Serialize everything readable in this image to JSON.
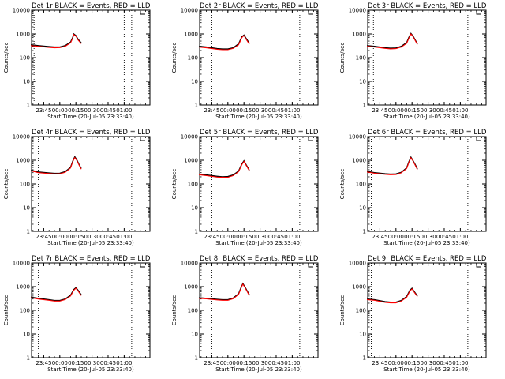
{
  "chart_data": [
    {
      "type": "line",
      "title": "Det 1r BLACK = Events, RED = LLD",
      "xlabel": "Start Time (20-Jul-05 23:33:40)",
      "ylabel": "Counts/sec",
      "yscale": "log",
      "ylim": [
        1,
        10000
      ],
      "y_ticks": [
        "1",
        "10",
        "100",
        "1000",
        "10000"
      ],
      "x_ticks": [
        "23:45",
        "00:00",
        "00:15",
        "00:30",
        "00:45",
        "01:00"
      ],
      "xlim": [
        "23:33:40",
        "01:24:00"
      ],
      "vlines": [
        "23:36",
        "01:00",
        "01:07"
      ],
      "legend": "top-right",
      "series": [
        {
          "color": "#000000",
          "x": [
            "23:33",
            "23:40",
            "23:50",
            "23:55",
            "00:00",
            "00:05",
            "00:10",
            "00:12",
            "00:13",
            "00:15",
            "00:17",
            "00:20"
          ],
          "values": [
            350,
            320,
            290,
            280,
            280,
            320,
            450,
            700,
            1000,
            850,
            600,
            420
          ]
        },
        {
          "color": "#ff0000",
          "x": [
            "23:33",
            "23:40",
            "23:50",
            "23:55",
            "00:00",
            "00:05",
            "00:10",
            "00:12",
            "00:13",
            "00:15",
            "00:17",
            "00:20"
          ],
          "values": [
            320,
            300,
            270,
            260,
            265,
            300,
            420,
            650,
            950,
            800,
            560,
            390
          ]
        }
      ]
    },
    {
      "type": "line",
      "title": "Det 2r BLACK = Events, RED = LLD",
      "xlabel": "Start Time (20-Jul-05 23:33:40)",
      "ylabel": "Counts/sec",
      "yscale": "log",
      "ylim": [
        1,
        10000
      ],
      "y_ticks": [
        "1",
        "10",
        "100",
        "1000",
        "10000"
      ],
      "x_ticks": [
        "23:45",
        "00:00",
        "00:15",
        "00:30",
        "00:45",
        "01:00"
      ],
      "xlim": [
        "23:33:40",
        "01:24:00"
      ],
      "vlines": [
        "23:45",
        "01:07"
      ],
      "legend": "top-right",
      "series": [
        {
          "color": "#000000",
          "x": [
            "23:33",
            "23:40",
            "23:50",
            "23:55",
            "00:00",
            "00:05",
            "00:10",
            "00:13",
            "00:15",
            "00:17",
            "00:20"
          ],
          "values": [
            300,
            280,
            240,
            230,
            230,
            260,
            380,
            750,
            900,
            650,
            400
          ]
        },
        {
          "color": "#ff0000",
          "x": [
            "23:33",
            "23:40",
            "23:50",
            "23:55",
            "00:00",
            "00:05",
            "00:10",
            "00:13",
            "00:15",
            "00:17",
            "00:20"
          ],
          "values": [
            280,
            260,
            225,
            215,
            215,
            245,
            350,
            700,
            850,
            600,
            370
          ]
        }
      ]
    },
    {
      "type": "line",
      "title": "Det 3r BLACK = Events, RED = LLD",
      "xlabel": "Start Time (20-Jul-05 23:33:40)",
      "ylabel": "Counts/sec",
      "yscale": "log",
      "ylim": [
        1,
        10000
      ],
      "y_ticks": [
        "1",
        "10",
        "100",
        "1000",
        "10000"
      ],
      "x_ticks": [
        "23:45",
        "00:00",
        "00:15",
        "00:30",
        "00:45",
        "01:00"
      ],
      "xlim": [
        "23:33:40",
        "01:24:00"
      ],
      "vlines": [
        "23:39",
        "01:07"
      ],
      "legend": "top-right",
      "series": [
        {
          "color": "#000000",
          "x": [
            "23:33",
            "23:40",
            "23:50",
            "23:55",
            "00:00",
            "00:05",
            "00:10",
            "00:12",
            "00:14",
            "00:16",
            "00:18",
            "00:20"
          ],
          "values": [
            320,
            300,
            260,
            250,
            255,
            300,
            430,
            700,
            1050,
            800,
            550,
            380
          ]
        },
        {
          "color": "#ff0000",
          "x": [
            "23:33",
            "23:40",
            "23:50",
            "23:55",
            "00:00",
            "00:05",
            "00:10",
            "00:12",
            "00:14",
            "00:16",
            "00:18",
            "00:20"
          ],
          "values": [
            300,
            280,
            245,
            235,
            240,
            280,
            400,
            650,
            1000,
            760,
            520,
            360
          ]
        }
      ]
    },
    {
      "type": "line",
      "title": "Det 4r BLACK = Events, RED = LLD",
      "xlabel": "Start Time (20-Jul-05 23:33:40)",
      "ylabel": "Counts/sec",
      "yscale": "log",
      "ylim": [
        1,
        10000
      ],
      "y_ticks": [
        "1",
        "10",
        "100",
        "1000",
        "10000"
      ],
      "x_ticks": [
        "23:45",
        "00:00",
        "00:15",
        "00:30",
        "00:45",
        "01:00"
      ],
      "xlim": [
        "23:33:40",
        "01:24:00"
      ],
      "vlines": [
        "23:40",
        "01:07"
      ],
      "legend": "top-right",
      "series": [
        {
          "color": "#000000",
          "x": [
            "23:33",
            "23:40",
            "23:50",
            "23:55",
            "00:00",
            "00:05",
            "00:10",
            "00:12",
            "00:14",
            "00:16",
            "00:18",
            "00:20"
          ],
          "values": [
            380,
            320,
            290,
            280,
            285,
            330,
            500,
            900,
            1400,
            1000,
            650,
            450
          ]
        },
        {
          "color": "#ff0000",
          "x": [
            "23:33",
            "23:40",
            "23:50",
            "23:55",
            "00:00",
            "00:05",
            "00:10",
            "00:12",
            "00:14",
            "00:16",
            "00:18",
            "00:20"
          ],
          "values": [
            360,
            300,
            275,
            265,
            270,
            310,
            470,
            850,
            1300,
            950,
            620,
            420
          ]
        }
      ]
    },
    {
      "type": "line",
      "title": "Det 5r BLACK = Events, RED = LLD",
      "xlabel": "Start Time (20-Jul-05 23:33:40)",
      "ylabel": "Counts/sec",
      "yscale": "log",
      "ylim": [
        1,
        10000
      ],
      "y_ticks": [
        "1",
        "10",
        "100",
        "1000",
        "10000"
      ],
      "x_ticks": [
        "23:45",
        "00:00",
        "00:15",
        "00:30",
        "00:45",
        "01:00"
      ],
      "xlim": [
        "23:33:40",
        "01:24:00"
      ],
      "vlines": [
        "23:45",
        "01:07"
      ],
      "legend": "top-right",
      "series": [
        {
          "color": "#000000",
          "x": [
            "23:33",
            "23:40",
            "23:50",
            "23:55",
            "00:00",
            "00:05",
            "00:10",
            "00:13",
            "00:15",
            "00:17",
            "00:20"
          ],
          "values": [
            260,
            240,
            210,
            200,
            205,
            240,
            350,
            700,
            950,
            650,
            380
          ]
        },
        {
          "color": "#ff0000",
          "x": [
            "23:33",
            "23:40",
            "23:50",
            "23:55",
            "00:00",
            "00:05",
            "00:10",
            "00:13",
            "00:15",
            "00:17",
            "00:20"
          ],
          "values": [
            245,
            225,
            195,
            190,
            190,
            225,
            330,
            650,
            900,
            620,
            360
          ]
        }
      ]
    },
    {
      "type": "line",
      "title": "Det 6r BLACK = Events, RED = LLD",
      "xlabel": "Start Time (20-Jul-05 23:33:40)",
      "ylabel": "Counts/sec",
      "yscale": "log",
      "ylim": [
        1,
        10000
      ],
      "y_ticks": [
        "1",
        "10",
        "100",
        "1000",
        "10000"
      ],
      "x_ticks": [
        "23:45",
        "00:00",
        "00:15",
        "00:30",
        "00:45",
        "01:00"
      ],
      "xlim": [
        "23:33:40",
        "01:24:00"
      ],
      "vlines": [
        "23:37",
        "01:07"
      ],
      "legend": "top-right",
      "series": [
        {
          "color": "#000000",
          "x": [
            "23:33",
            "23:40",
            "23:50",
            "23:55",
            "00:00",
            "00:05",
            "00:10",
            "00:12",
            "00:14",
            "00:16",
            "00:18",
            "00:20"
          ],
          "values": [
            340,
            300,
            270,
            260,
            265,
            310,
            480,
            850,
            1350,
            950,
            650,
            430
          ]
        },
        {
          "color": "#ff0000",
          "x": [
            "23:33",
            "23:40",
            "23:50",
            "23:55",
            "00:00",
            "00:05",
            "00:10",
            "00:12",
            "00:14",
            "00:16",
            "00:18",
            "00:20"
          ],
          "values": [
            320,
            285,
            255,
            245,
            250,
            295,
            450,
            800,
            1280,
            900,
            610,
            400
          ]
        }
      ]
    },
    {
      "type": "line",
      "title": "Det 7r BLACK = Events, RED = LLD",
      "xlabel": "Start Time (20-Jul-05 23:33:40)",
      "ylabel": "Counts/sec",
      "yscale": "log",
      "ylim": [
        1,
        10000
      ],
      "y_ticks": [
        "1",
        "10",
        "100",
        "1000",
        "10000"
      ],
      "x_ticks": [
        "23:45",
        "00:00",
        "00:15",
        "00:30",
        "00:45",
        "01:00"
      ],
      "xlim": [
        "23:33:40",
        "01:24:00"
      ],
      "vlines": [
        "23:40",
        "01:07"
      ],
      "legend": "top-right",
      "series": [
        {
          "color": "#000000",
          "x": [
            "23:33",
            "23:40",
            "23:50",
            "23:55",
            "00:00",
            "00:05",
            "00:10",
            "00:13",
            "00:15",
            "00:17",
            "00:20"
          ],
          "values": [
            360,
            320,
            280,
            260,
            260,
            300,
            430,
            750,
            900,
            700,
            450
          ]
        },
        {
          "color": "#ff0000",
          "x": [
            "23:33",
            "23:40",
            "23:50",
            "23:55",
            "00:00",
            "00:05",
            "00:10",
            "00:13",
            "00:15",
            "00:17",
            "00:20"
          ],
          "values": [
            340,
            300,
            265,
            245,
            245,
            285,
            400,
            700,
            850,
            660,
            420
          ]
        }
      ]
    },
    {
      "type": "line",
      "title": "Det 8r BLACK = Events, RED = LLD",
      "xlabel": "Start Time (20-Jul-05 23:33:40)",
      "ylabel": "Counts/sec",
      "yscale": "log",
      "ylim": [
        1,
        10000
      ],
      "y_ticks": [
        "1",
        "10",
        "100",
        "1000",
        "10000"
      ],
      "x_ticks": [
        "23:45",
        "00:00",
        "00:15",
        "00:30",
        "00:45",
        "01:00"
      ],
      "xlim": [
        "23:33:40",
        "01:24:00"
      ],
      "vlines": [
        "23:45",
        "01:07"
      ],
      "legend": "top-right",
      "series": [
        {
          "color": "#000000",
          "x": [
            "23:33",
            "23:40",
            "23:50",
            "23:55",
            "00:00",
            "00:05",
            "00:10",
            "00:12",
            "00:14",
            "00:16",
            "00:18",
            "00:20"
          ],
          "values": [
            340,
            320,
            290,
            280,
            280,
            330,
            500,
            850,
            1350,
            950,
            650,
            450
          ]
        },
        {
          "color": "#ff0000",
          "x": [
            "23:33",
            "23:40",
            "23:50",
            "23:55",
            "00:00",
            "00:05",
            "00:10",
            "00:12",
            "00:14",
            "00:16",
            "00:18",
            "00:20"
          ],
          "values": [
            320,
            305,
            275,
            265,
            265,
            310,
            470,
            800,
            1280,
            900,
            610,
            420
          ]
        }
      ]
    },
    {
      "type": "line",
      "title": "Det 9r BLACK = Events, RED = LLD",
      "xlabel": "Start Time (20-Jul-05 23:33:40)",
      "ylabel": "Counts/sec",
      "yscale": "log",
      "ylim": [
        1,
        10000
      ],
      "y_ticks": [
        "1",
        "10",
        "100",
        "1000",
        "10000"
      ],
      "x_ticks": [
        "23:45",
        "00:00",
        "00:15",
        "00:30",
        "00:45",
        "01:00"
      ],
      "xlim": [
        "23:33:40",
        "01:24:00"
      ],
      "vlines": [
        "23:37",
        "01:07"
      ],
      "legend": "top-right",
      "series": [
        {
          "color": "#000000",
          "x": [
            "23:33",
            "23:40",
            "23:50",
            "23:55",
            "00:00",
            "00:05",
            "00:10",
            "00:13",
            "00:15",
            "00:17",
            "00:20"
          ],
          "values": [
            300,
            280,
            230,
            220,
            220,
            260,
            380,
            700,
            850,
            620,
            400
          ]
        },
        {
          "color": "#ff0000",
          "x": [
            "23:33",
            "23:40",
            "23:50",
            "23:55",
            "00:00",
            "00:05",
            "00:10",
            "00:13",
            "00:15",
            "00:17",
            "00:20"
          ],
          "values": [
            285,
            265,
            215,
            205,
            205,
            245,
            355,
            650,
            800,
            590,
            380
          ]
        }
      ]
    }
  ]
}
